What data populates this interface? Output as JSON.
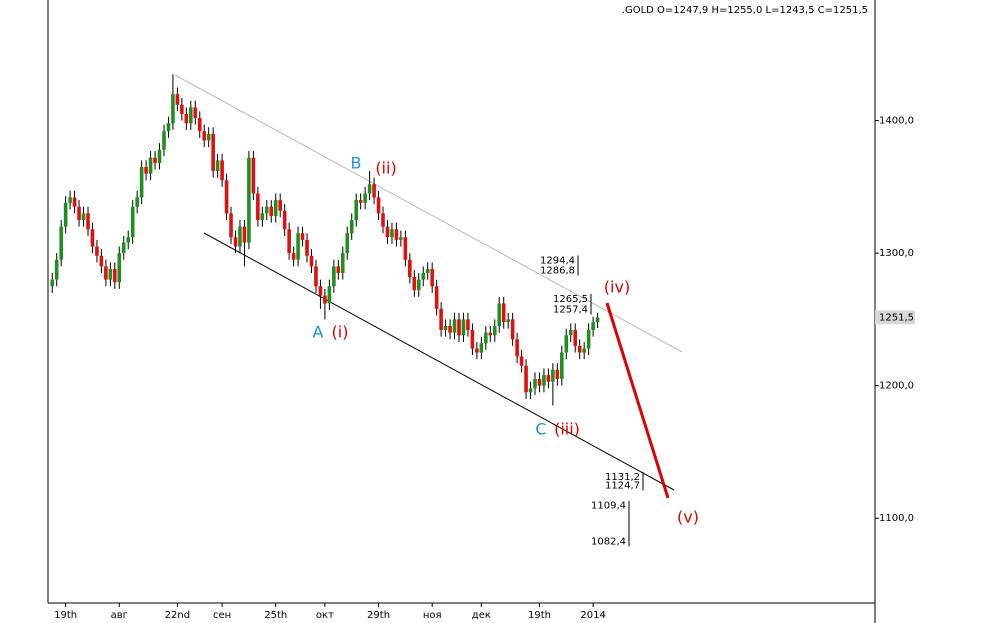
{
  "chart_data": {
    "type": "candlestick",
    "title": ".GOLD O=1247,9 H=1255,0 L=1243,5 C=1251,5",
    "categories": [
      null,
      null,
      null,
      "19th",
      null,
      null,
      null,
      null,
      null,
      null,
      null,
      null,
      null,
      null,
      null,
      "авг",
      null,
      null,
      null,
      null,
      null,
      null,
      null,
      null,
      null,
      null,
      null,
      null,
      "22nd",
      null,
      null,
      null,
      null,
      null,
      null,
      null,
      null,
      null,
      "сен",
      null,
      null,
      null,
      null,
      null,
      null,
      null,
      null,
      null,
      null,
      null,
      "25th",
      null,
      null,
      null,
      null,
      null,
      null,
      null,
      null,
      null,
      null,
      "окт",
      null,
      null,
      null,
      null,
      null,
      null,
      null,
      null,
      null,
      null,
      null,
      "29th",
      null,
      null,
      null,
      null,
      null,
      null,
      null,
      null,
      null,
      null,
      null,
      "ноя",
      null,
      null,
      null,
      null,
      null,
      null,
      null,
      null,
      null,
      null,
      "дек",
      null,
      null,
      null,
      null,
      null,
      null,
      null,
      null,
      null,
      null,
      null,
      null,
      "19th",
      null,
      null,
      null,
      null,
      null,
      null,
      null,
      null,
      null,
      null,
      null,
      "2014",
      null
    ],
    "open": [
      1275,
      1280,
      1295,
      1320,
      1338,
      1342,
      1335,
      1325,
      1330,
      1318,
      1305,
      1298,
      1290,
      1280,
      1288,
      1278,
      1300,
      1308,
      1312,
      1335,
      1342,
      1365,
      1360,
      1372,
      1368,
      1378,
      1392,
      1398,
      1420,
      1412,
      1405,
      1398,
      1410,
      1402,
      1392,
      1385,
      1390,
      1362,
      1370,
      1355,
      1330,
      1312,
      1305,
      1320,
      1308,
      1372,
      1345,
      1325,
      1330,
      1335,
      1328,
      1340,
      1332,
      1318,
      1300,
      1295,
      1315,
      1310,
      1298,
      1290,
      1275,
      1268,
      1262,
      1275,
      1290,
      1285,
      1300,
      1315,
      1325,
      1340,
      1338,
      1345,
      1352,
      1342,
      1330,
      1320,
      1312,
      1318,
      1310,
      1312,
      1295,
      1282,
      1272,
      1280,
      1285,
      1288,
      1275,
      1258,
      1242,
      1245,
      1240,
      1250,
      1238,
      1250,
      1242,
      1228,
      1225,
      1232,
      1240,
      1238,
      1245,
      1262,
      1248,
      1250,
      1235,
      1222,
      1215,
      1195,
      1198,
      1205,
      1200,
      1208,
      1203,
      1212,
      1205,
      1225,
      1238,
      1242,
      1230,
      1225,
      1228,
      1242,
      1247.9
    ],
    "high": [
      1285,
      1300,
      1325,
      1343,
      1347,
      1347,
      1340,
      1335,
      1335,
      1323,
      1310,
      1303,
      1295,
      1293,
      1293,
      1305,
      1313,
      1317,
      1340,
      1347,
      1370,
      1370,
      1377,
      1377,
      1383,
      1397,
      1403,
      1435,
      1425,
      1417,
      1410,
      1415,
      1415,
      1407,
      1397,
      1395,
      1395,
      1375,
      1375,
      1360,
      1335,
      1317,
      1325,
      1325,
      1377,
      1377,
      1350,
      1335,
      1340,
      1340,
      1345,
      1345,
      1337,
      1323,
      1305,
      1320,
      1320,
      1315,
      1303,
      1295,
      1280,
      1273,
      1280,
      1295,
      1295,
      1305,
      1320,
      1330,
      1345,
      1345,
      1350,
      1362,
      1357,
      1347,
      1335,
      1325,
      1323,
      1323,
      1317,
      1317,
      1300,
      1287,
      1285,
      1290,
      1293,
      1293,
      1280,
      1263,
      1250,
      1250,
      1255,
      1255,
      1255,
      1255,
      1247,
      1233,
      1237,
      1245,
      1245,
      1250,
      1267,
      1267,
      1255,
      1255,
      1240,
      1227,
      1220,
      1203,
      1210,
      1210,
      1213,
      1213,
      1217,
      1217,
      1230,
      1243,
      1247,
      1247,
      1235,
      1233,
      1247,
      1252,
      1255
    ],
    "low": [
      1270,
      1275,
      1290,
      1315,
      1333,
      1330,
      1320,
      1320,
      1313,
      1300,
      1293,
      1285,
      1275,
      1275,
      1273,
      1273,
      1295,
      1303,
      1307,
      1330,
      1337,
      1355,
      1355,
      1363,
      1363,
      1373,
      1387,
      1393,
      1407,
      1400,
      1393,
      1393,
      1397,
      1387,
      1380,
      1380,
      1357,
      1357,
      1350,
      1325,
      1307,
      1300,
      1300,
      1290,
      1303,
      1340,
      1320,
      1320,
      1325,
      1323,
      1323,
      1327,
      1313,
      1295,
      1290,
      1290,
      1305,
      1293,
      1285,
      1270,
      1258,
      1250,
      1257,
      1270,
      1280,
      1280,
      1295,
      1310,
      1320,
      1333,
      1333,
      1340,
      1337,
      1325,
      1315,
      1307,
      1307,
      1305,
      1305,
      1290,
      1277,
      1267,
      1267,
      1275,
      1280,
      1270,
      1253,
      1237,
      1237,
      1235,
      1235,
      1233,
      1233,
      1237,
      1223,
      1220,
      1220,
      1227,
      1233,
      1233,
      1240,
      1243,
      1243,
      1230,
      1217,
      1210,
      1190,
      1190,
      1193,
      1195,
      1195,
      1198,
      1185,
      1200,
      1200,
      1220,
      1233,
      1225,
      1220,
      1220,
      1223,
      1237,
      1243.5
    ],
    "close": [
      1280,
      1295,
      1320,
      1338,
      1342,
      1335,
      1325,
      1330,
      1318,
      1305,
      1298,
      1290,
      1280,
      1288,
      1278,
      1300,
      1308,
      1312,
      1335,
      1342,
      1365,
      1360,
      1372,
      1368,
      1378,
      1392,
      1398,
      1420,
      1412,
      1405,
      1398,
      1410,
      1402,
      1392,
      1385,
      1390,
      1362,
      1370,
      1355,
      1330,
      1312,
      1305,
      1320,
      1308,
      1372,
      1345,
      1325,
      1330,
      1335,
      1328,
      1340,
      1332,
      1318,
      1300,
      1295,
      1315,
      1310,
      1298,
      1290,
      1275,
      1268,
      1262,
      1275,
      1290,
      1285,
      1300,
      1315,
      1325,
      1340,
      1338,
      1345,
      1352,
      1342,
      1330,
      1320,
      1312,
      1318,
      1310,
      1312,
      1295,
      1282,
      1272,
      1280,
      1285,
      1288,
      1275,
      1258,
      1242,
      1245,
      1240,
      1250,
      1238,
      1250,
      1242,
      1228,
      1225,
      1232,
      1240,
      1238,
      1245,
      1262,
      1248,
      1250,
      1235,
      1222,
      1215,
      1195,
      1198,
      1205,
      1200,
      1208,
      1203,
      1212,
      1205,
      1225,
      1238,
      1242,
      1230,
      1225,
      1228,
      1242,
      1247.9,
      1251.5
    ],
    "up_color": "#1f8f1f",
    "down_color": "#e01010",
    "ylim": [
      1036,
      1491
    ],
    "yticks": [
      {
        "value": 1100,
        "label": "1100,0"
      },
      {
        "value": 1200,
        "label": "1200,0"
      },
      {
        "value": 1300,
        "label": "1300,0"
      },
      {
        "value": 1400,
        "label": "1400,0"
      }
    ],
    "last_price": {
      "value": 1251.5,
      "label": "1251,5"
    },
    "price_levels": [
      {
        "value": 1294.4,
        "label": "1294,4"
      },
      {
        "value": 1286.8,
        "label": "1286,8"
      },
      {
        "value": 1265.5,
        "label": "1265,5"
      },
      {
        "value": 1257.4,
        "label": "1257,4"
      },
      {
        "value": 1131.2,
        "label": "1131,2"
      },
      {
        "value": 1124.7,
        "label": "1124,7"
      },
      {
        "value": 1109.4,
        "label": "1109,4"
      },
      {
        "value": 1082.4,
        "label": "1082,4"
      }
    ],
    "annotations": [
      "A",
      "(i)",
      "B",
      "(ii)",
      "C",
      "(iii)",
      "(iv)",
      "(v)"
    ]
  }
}
